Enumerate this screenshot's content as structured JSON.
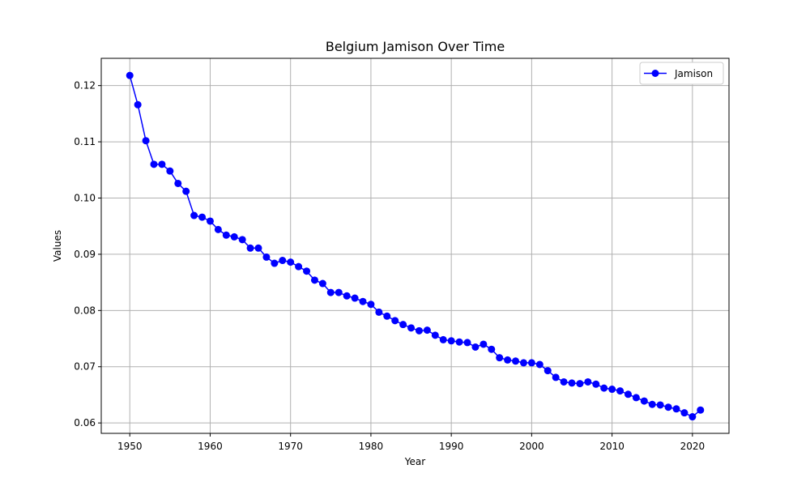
{
  "chart_data": {
    "type": "line",
    "title": "Belgium Jamison Over Time",
    "xlabel": "Year",
    "ylabel": "Values",
    "xlim": [
      1946.45,
      2024.55
    ],
    "ylim": [
      0.05815,
      0.12485
    ],
    "x_ticks": [
      1950,
      1960,
      1970,
      1980,
      1990,
      2000,
      2010,
      2020
    ],
    "x_tick_labels": [
      "1950",
      "1960",
      "1970",
      "1980",
      "1990",
      "2000",
      "2010",
      "2020"
    ],
    "y_ticks": [
      0.06,
      0.07,
      0.08,
      0.09,
      0.1,
      0.11,
      0.12
    ],
    "y_tick_labels": [
      "0.06",
      "0.07",
      "0.08",
      "0.09",
      "0.10",
      "0.11",
      "0.12"
    ],
    "grid": true,
    "legend_position": "top-right",
    "series": [
      {
        "name": "Jamison",
        "color": "#0000ff",
        "marker": "circle",
        "x": [
          1950,
          1951,
          1952,
          1953,
          1954,
          1955,
          1956,
          1957,
          1958,
          1959,
          1960,
          1961,
          1962,
          1963,
          1964,
          1965,
          1966,
          1967,
          1968,
          1969,
          1970,
          1971,
          1972,
          1973,
          1974,
          1975,
          1976,
          1977,
          1978,
          1979,
          1980,
          1981,
          1982,
          1983,
          1984,
          1985,
          1986,
          1987,
          1988,
          1989,
          1990,
          1991,
          1992,
          1993,
          1994,
          1995,
          1996,
          1997,
          1998,
          1999,
          2000,
          2001,
          2002,
          2003,
          2004,
          2005,
          2006,
          2007,
          2008,
          2009,
          2010,
          2011,
          2012,
          2013,
          2014,
          2015,
          2016,
          2017,
          2018,
          2019,
          2020,
          2021
        ],
        "y": [
          0.1218,
          0.1166,
          0.1102,
          0.106,
          0.106,
          0.1048,
          0.1026,
          0.1012,
          0.0969,
          0.0966,
          0.0959,
          0.0944,
          0.0934,
          0.0931,
          0.0926,
          0.0911,
          0.0911,
          0.0895,
          0.0884,
          0.0889,
          0.0886,
          0.0878,
          0.087,
          0.0854,
          0.0848,
          0.0832,
          0.0832,
          0.0826,
          0.0822,
          0.0816,
          0.0811,
          0.0797,
          0.079,
          0.0782,
          0.0775,
          0.0769,
          0.0764,
          0.0765,
          0.0756,
          0.0748,
          0.0746,
          0.0744,
          0.0743,
          0.0735,
          0.074,
          0.0731,
          0.0716,
          0.0712,
          0.071,
          0.0707,
          0.0707,
          0.0704,
          0.0693,
          0.0681,
          0.0673,
          0.0671,
          0.067,
          0.0673,
          0.0669,
          0.0662,
          0.066,
          0.0657,
          0.0651,
          0.0645,
          0.0639,
          0.0633,
          0.0632,
          0.0628,
          0.0625,
          0.0618,
          0.0611,
          0.0623
        ]
      }
    ]
  }
}
